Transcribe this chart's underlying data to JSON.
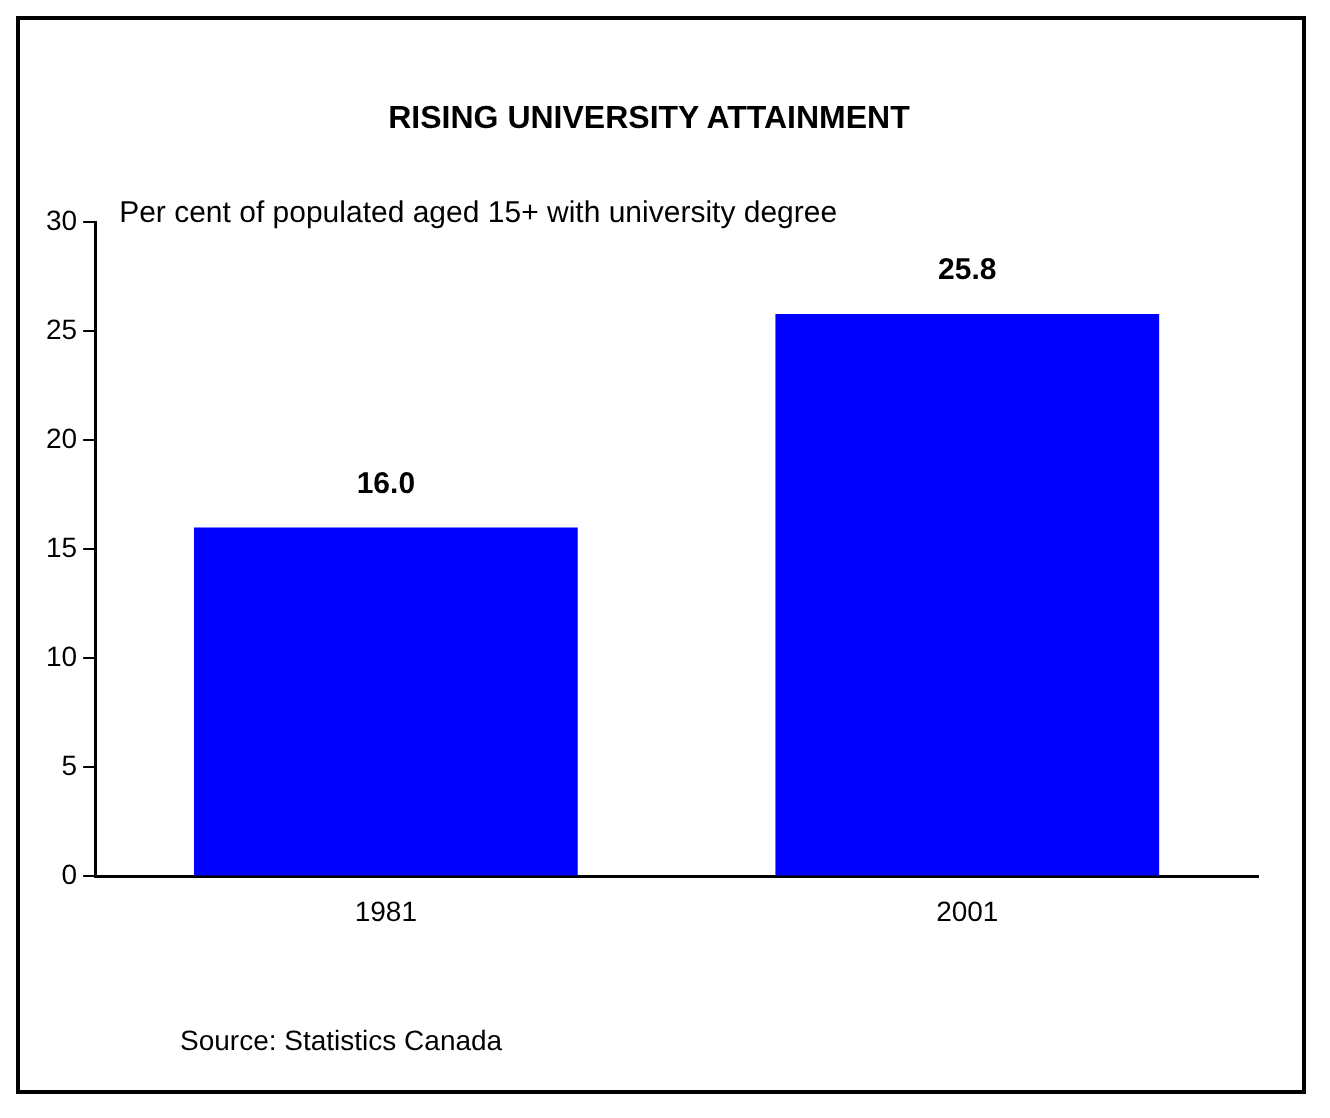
{
  "chart_data": {
    "type": "bar",
    "title": "RISING UNIVERSITY ATTAINMENT",
    "ylabel": "Per cent of populated aged 15+ with university degree",
    "categories": [
      "1981",
      "2001"
    ],
    "values": [
      16.0,
      25.8
    ],
    "value_labels": [
      "16.0",
      "25.8"
    ],
    "color": "#0000ff",
    "ylim": [
      0,
      30
    ],
    "yticks": [
      0,
      5,
      10,
      15,
      20,
      25,
      30
    ],
    "grid": false,
    "legend": false,
    "annotations": [
      "Source: Statistics Canada"
    ]
  }
}
